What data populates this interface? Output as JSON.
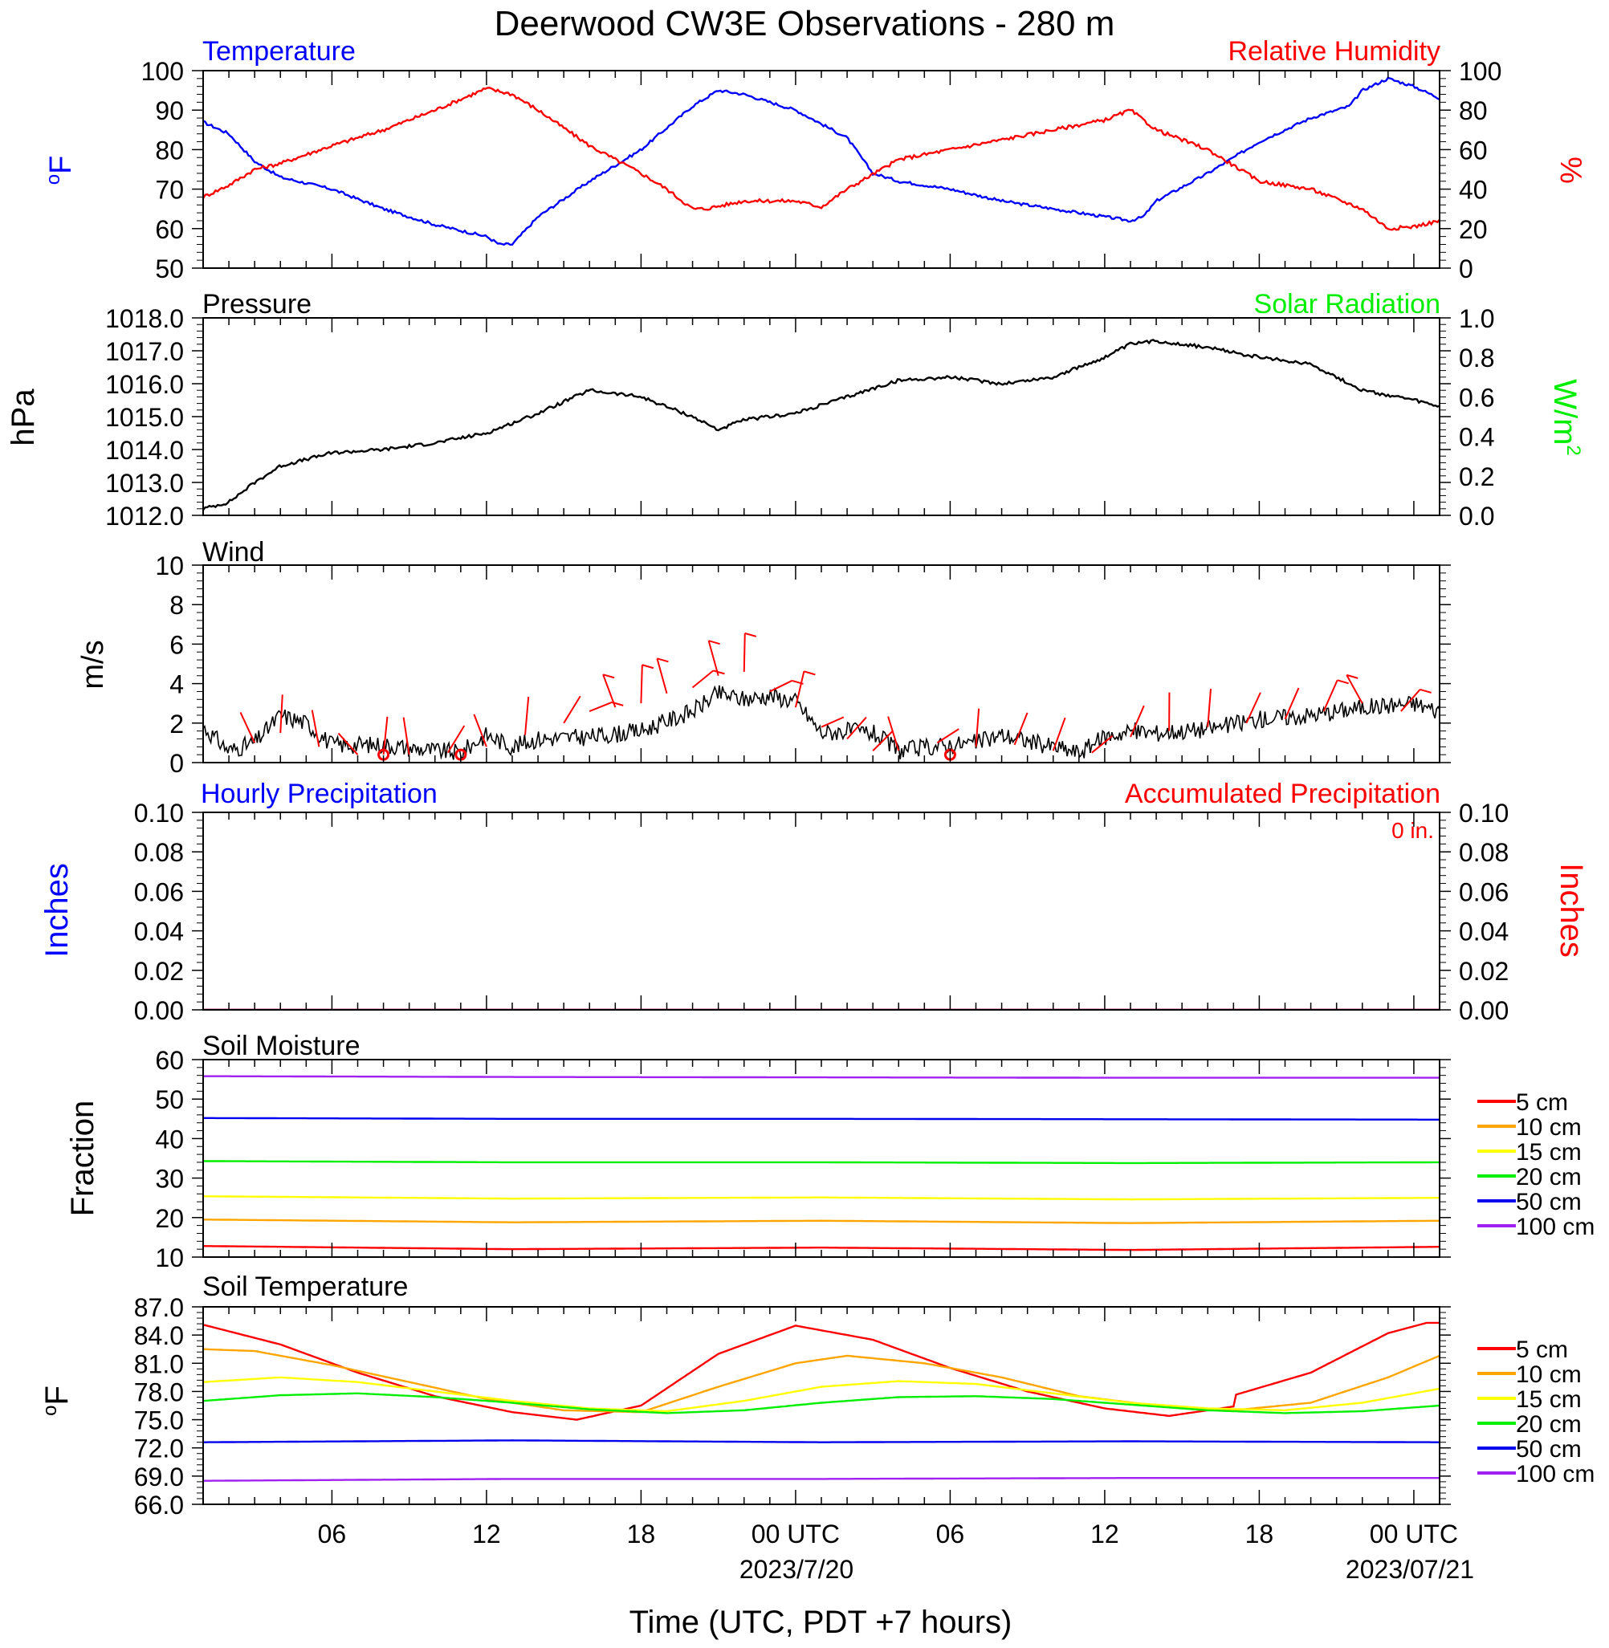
{
  "title": "Deerwood CW3E Observations - 280 m",
  "x_axis": {
    "label": "Time (UTC, PDT +7 hours)",
    "tick_labels": [
      "06",
      "12",
      "18",
      "00 UTC",
      "06",
      "12",
      "18",
      "00 UTC"
    ],
    "date_labels": [
      "2023/7/20",
      "2023/07/21"
    ]
  },
  "panels": {
    "temperature": {
      "left_title": "Temperature",
      "right_title": "Relative Humidity",
      "left_unit": "F",
      "right_unit": "%",
      "left_ticks": [
        "100",
        "90",
        "80",
        "70",
        "60",
        "50"
      ],
      "right_ticks": [
        "100",
        "80",
        "60",
        "40",
        "20",
        "0"
      ],
      "colors": {
        "temperature": "#0000ff",
        "humidity": "#ff0000"
      }
    },
    "pressure": {
      "left_title": "Pressure",
      "right_title": "Solar Radiation",
      "left_unit": "hPa",
      "right_unit": "W/m",
      "right_unit_sup": "2",
      "left_ticks": [
        "1018.0",
        "1017.0",
        "1016.0",
        "1015.0",
        "1014.0",
        "1013.0",
        "1012.0"
      ],
      "right_ticks": [
        "1.0",
        "0.8",
        "0.6",
        "0.4",
        "0.2",
        "0.0"
      ],
      "colors": {
        "pressure": "#000000",
        "solar": "#00ee00"
      }
    },
    "wind": {
      "left_title": "Wind",
      "left_unit": "m/s",
      "left_ticks": [
        "10",
        "8",
        "6",
        "4",
        "2",
        "0"
      ],
      "colors": {
        "speed": "#000000",
        "barbs": "#ff0000"
      }
    },
    "precip": {
      "left_title": "Hourly Precipitation",
      "right_title": "Accumulated Precipitation",
      "accum_label": "0 in.",
      "left_unit": "Inches",
      "right_unit": "Inches",
      "left_ticks": [
        "0.10",
        "0.08",
        "0.06",
        "0.04",
        "0.02",
        "0.00"
      ],
      "right_ticks": [
        "0.10",
        "0.08",
        "0.06",
        "0.04",
        "0.02",
        "0.00"
      ],
      "colors": {
        "hourly": "#0000ff",
        "accum": "#ff0000"
      }
    },
    "soil_moisture": {
      "left_title": "Soil Moisture",
      "left_unit": "Fraction",
      "left_ticks": [
        "60",
        "50",
        "40",
        "30",
        "20",
        "10"
      ],
      "legend": [
        "5 cm",
        "10 cm",
        "15 cm",
        "20 cm",
        "50 cm",
        "100 cm"
      ]
    },
    "soil_temperature": {
      "left_title": "Soil Temperature",
      "left_unit": "F",
      "left_ticks": [
        "87.0",
        "84.0",
        "81.0",
        "78.0",
        "75.0",
        "72.0",
        "69.0",
        "66.0"
      ],
      "legend": [
        "5 cm",
        "10 cm",
        "15 cm",
        "20 cm",
        "50 cm",
        "100 cm"
      ]
    }
  },
  "depth_colors": [
    "#ff0000",
    "#ffa500",
    "#ffff00",
    "#00ee00",
    "#0000ee",
    "#a020f0"
  ],
  "chart_data": [
    {
      "type": "line",
      "title": "Temperature / Relative Humidity",
      "x_unit": "hours since 2023-07-19 00 UTC",
      "xlim": [
        1,
        49
      ],
      "ylim_left": [
        50,
        100
      ],
      "ylim_right": [
        0,
        100
      ],
      "series": [
        {
          "name": "Temperature",
          "axis": "left",
          "color": "#0000ff",
          "x": [
            1,
            2,
            3,
            4,
            6,
            8,
            10,
            12,
            12.5,
            13,
            14,
            16,
            18,
            20,
            21,
            22,
            24,
            26,
            27,
            28,
            30,
            32,
            34,
            36,
            37,
            37.5,
            38,
            40,
            42,
            44,
            45.5,
            46,
            47,
            48,
            49
          ],
          "y": [
            87,
            84,
            77,
            73,
            70,
            65,
            61,
            58,
            56,
            56,
            63,
            72,
            80,
            91,
            95,
            94,
            90,
            83,
            74,
            72,
            70,
            67,
            65,
            63,
            62,
            63,
            67,
            74,
            82,
            88,
            91,
            95,
            98,
            96,
            93
          ]
        },
        {
          "name": "Relative Humidity",
          "axis": "right",
          "color": "#ff0000",
          "x": [
            1,
            2,
            3,
            4,
            6,
            8,
            10,
            12,
            13,
            14,
            16,
            18,
            19,
            20,
            20.5,
            22,
            24,
            25,
            26,
            28,
            30,
            32,
            34,
            36,
            37,
            38,
            40,
            42,
            44,
            46,
            47,
            48,
            49
          ],
          "y": [
            36,
            42,
            50,
            53,
            62,
            70,
            80,
            91,
            88,
            80,
            62,
            48,
            40,
            30,
            30,
            34,
            34,
            31,
            40,
            55,
            60,
            65,
            70,
            75,
            80,
            70,
            60,
            44,
            40,
            30,
            20,
            21,
            24
          ]
        }
      ]
    },
    {
      "type": "line",
      "title": "Pressure / Solar Radiation",
      "x_unit": "hours since 2023-07-19 00 UTC",
      "xlim": [
        1,
        49
      ],
      "ylim_left": [
        1012,
        1018
      ],
      "ylim_right": [
        0,
        1
      ],
      "series": [
        {
          "name": "Pressure",
          "axis": "left",
          "color": "#000000",
          "x": [
            1,
            2,
            3,
            4,
            6,
            8,
            10,
            12,
            14,
            16,
            18,
            20,
            21,
            22,
            24,
            26,
            28,
            30,
            32,
            34,
            36,
            37,
            38,
            40,
            42,
            44,
            46,
            48,
            49
          ],
          "y": [
            1012.2,
            1012.4,
            1013.0,
            1013.5,
            1013.9,
            1014.0,
            1014.2,
            1014.5,
            1015.1,
            1015.8,
            1015.6,
            1015.0,
            1014.6,
            1014.9,
            1015.1,
            1015.6,
            1016.1,
            1016.2,
            1016.0,
            1016.2,
            1016.8,
            1017.2,
            1017.3,
            1017.1,
            1016.8,
            1016.6,
            1015.8,
            1015.5,
            1015.3
          ]
        }
      ]
    },
    {
      "type": "line",
      "title": "Wind",
      "x_unit": "hours since 2023-07-19 00 UTC",
      "xlim": [
        1,
        49
      ],
      "ylim": [
        0,
        10
      ],
      "series": [
        {
          "name": "Wind speed",
          "color": "#000000",
          "x": [
            1,
            2,
            3,
            4,
            5,
            6,
            8,
            10,
            11,
            12,
            13,
            14,
            16,
            18,
            20,
            21,
            22,
            23,
            24,
            25,
            26,
            27,
            28,
            30,
            31,
            32,
            34,
            35,
            36,
            37,
            38,
            40,
            42,
            44,
            46,
            48,
            49
          ],
          "y": [
            1.8,
            0.6,
            1.0,
            2.4,
            2.0,
            0.9,
            0.9,
            0.6,
            0.5,
            1.4,
            0.8,
            1.2,
            1.3,
            1.6,
            2.6,
            3.5,
            3.2,
            3.4,
            3.1,
            1.5,
            1.6,
            1.5,
            0.6,
            0.9,
            1.0,
            1.4,
            0.8,
            0.5,
            1.3,
            1.6,
            1.5,
            1.7,
            2.2,
            2.4,
            2.8,
            3.0,
            2.6
          ]
        }
      ],
      "barbs": {
        "x": [
          3,
          4,
          5.5,
          7,
          8,
          9,
          10.5,
          12,
          13.5,
          15,
          16,
          17,
          18,
          19,
          20,
          21,
          22,
          23,
          24,
          25,
          26,
          27,
          28,
          29.5,
          31,
          32.5,
          34,
          35.5,
          37,
          38.5,
          40,
          41.5,
          43,
          44.5,
          46,
          47.5
        ],
        "y": [
          1.0,
          1.5,
          0.8,
          0.4,
          0.4,
          0.4,
          0.5,
          0.8,
          1.4,
          2.0,
          2.6,
          2.8,
          3.0,
          3.5,
          3.8,
          4.4,
          4.6,
          3.6,
          2.8,
          1.8,
          1.2,
          0.6,
          0.6,
          1.0,
          0.8,
          0.9,
          0.6,
          0.5,
          1.3,
          1.6,
          1.8,
          2.0,
          2.2,
          2.6,
          3.0,
          2.6
        ]
      },
      "calm_x": [
        8,
        11,
        30
      ]
    },
    {
      "type": "line",
      "title": "Precipitation",
      "x_unit": "hours since 2023-07-19 00 UTC",
      "xlim": [
        1,
        49
      ],
      "ylim": [
        0,
        0.1
      ],
      "series": [
        {
          "name": "Hourly Precipitation",
          "axis": "left",
          "color": "#0000ff",
          "x": [
            1,
            49
          ],
          "y": [
            0,
            0
          ]
        },
        {
          "name": "Accumulated Precipitation",
          "axis": "right",
          "color": "#ff0000",
          "x": [
            1,
            49
          ],
          "y": [
            0,
            0
          ]
        }
      ]
    },
    {
      "type": "line",
      "title": "Soil Moisture",
      "x_unit": "hours since 2023-07-19 00 UTC",
      "xlim": [
        1,
        49
      ],
      "ylim": [
        10,
        60
      ],
      "series": [
        {
          "name": "5 cm",
          "color": "#ff0000",
          "x": [
            1,
            13,
            25,
            37,
            49
          ],
          "y": [
            12.8,
            12.0,
            12.4,
            11.8,
            12.6
          ]
        },
        {
          "name": "10 cm",
          "color": "#ffa500",
          "x": [
            1,
            13,
            25,
            37,
            49
          ],
          "y": [
            19.5,
            18.8,
            19.2,
            18.6,
            19.2
          ]
        },
        {
          "name": "15 cm",
          "color": "#ffff00",
          "x": [
            1,
            13,
            25,
            37,
            49
          ],
          "y": [
            25.4,
            24.8,
            25.1,
            24.6,
            25.0
          ]
        },
        {
          "name": "20 cm",
          "color": "#00ee00",
          "x": [
            1,
            13,
            25,
            37,
            49
          ],
          "y": [
            34.3,
            34.0,
            34.0,
            33.8,
            34.0
          ]
        },
        {
          "name": "50 cm",
          "color": "#0000ee",
          "x": [
            1,
            13,
            25,
            37,
            49
          ],
          "y": [
            45.2,
            45.0,
            45.0,
            44.9,
            44.8
          ]
        },
        {
          "name": "100 cm",
          "color": "#a020f0",
          "x": [
            1,
            13,
            25,
            37,
            49
          ],
          "y": [
            55.8,
            55.6,
            55.5,
            55.4,
            55.4
          ]
        }
      ]
    },
    {
      "type": "line",
      "title": "Soil Temperature",
      "x_unit": "hours since 2023-07-19 00 UTC",
      "xlim": [
        1,
        49
      ],
      "ylim": [
        66,
        87
      ],
      "series": [
        {
          "name": "5 cm",
          "color": "#ff0000",
          "x": [
            1,
            4,
            7,
            10,
            13,
            15.5,
            18,
            21,
            24,
            27,
            30,
            33,
            36,
            38.5,
            41,
            41.02,
            44,
            47,
            48.5,
            49
          ],
          "y": [
            85.1,
            83.0,
            80.0,
            77.5,
            75.8,
            75.0,
            76.5,
            82.0,
            85.0,
            83.5,
            80.5,
            78.0,
            76.2,
            75.4,
            76.4,
            77.6,
            80.0,
            84.2,
            85.3,
            85.3
          ]
        },
        {
          "name": "10 cm",
          "color": "#ffa500",
          "x": [
            1,
            3,
            6,
            9,
            12,
            15,
            18,
            21,
            24,
            26,
            29,
            32,
            35,
            38,
            41,
            44,
            47,
            49
          ],
          "y": [
            82.5,
            82.3,
            80.8,
            79.0,
            77.2,
            76.0,
            75.8,
            78.5,
            81.0,
            81.8,
            81.0,
            79.5,
            77.5,
            76.5,
            76.0,
            76.8,
            79.5,
            81.8
          ]
        },
        {
          "name": "15 cm",
          "color": "#ffff00",
          "x": [
            1,
            4,
            7,
            10,
            13,
            16,
            19,
            22,
            25,
            28,
            31,
            34,
            37,
            40,
            43,
            46,
            49
          ],
          "y": [
            79.0,
            79.5,
            79.0,
            78.0,
            77.0,
            76.2,
            75.9,
            77.0,
            78.5,
            79.1,
            78.8,
            77.8,
            76.8,
            76.2,
            76.0,
            76.8,
            78.3
          ]
        },
        {
          "name": "20 cm",
          "color": "#00ee00",
          "x": [
            1,
            4,
            7,
            10,
            13,
            16,
            19,
            22,
            25,
            28,
            31,
            34,
            37,
            40,
            43,
            46,
            49
          ],
          "y": [
            77.0,
            77.6,
            77.8,
            77.4,
            76.8,
            76.1,
            75.7,
            76.0,
            76.8,
            77.4,
            77.5,
            77.2,
            76.6,
            76.0,
            75.7,
            75.9,
            76.5
          ]
        },
        {
          "name": "50 cm",
          "color": "#0000ee",
          "x": [
            1,
            13,
            25,
            37,
            49
          ],
          "y": [
            72.6,
            72.8,
            72.6,
            72.7,
            72.6
          ]
        },
        {
          "name": "100 cm",
          "color": "#a020f0",
          "x": [
            1,
            13,
            25,
            37,
            49
          ],
          "y": [
            68.5,
            68.7,
            68.7,
            68.8,
            68.8
          ]
        }
      ]
    }
  ]
}
